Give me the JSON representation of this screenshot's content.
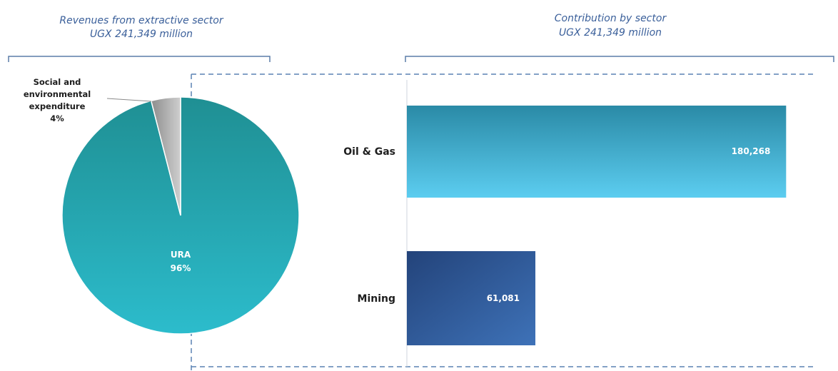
{
  "chart_data": [
    {
      "type": "pie",
      "title": "Revenues from extractive sector",
      "subtitle": "UGX 241,349 million",
      "slices": [
        {
          "label": "URA",
          "value": 96,
          "value_label": "96%",
          "color": "#27a6b2"
        },
        {
          "label": "Social and environmental expenditure",
          "label_lines": [
            "Social and",
            "environmental",
            "expenditure"
          ],
          "value": 4,
          "value_label": "4%",
          "color": "#a9a9a9"
        }
      ]
    },
    {
      "type": "bar",
      "orientation": "horizontal",
      "title": "Contribution by sector",
      "subtitle": "UGX 241,349 million",
      "categories": [
        "Oil & Gas",
        "Mining"
      ],
      "values": [
        180268,
        61081
      ],
      "value_labels": [
        "180,268",
        "61,081"
      ],
      "colors": [
        "#3fb5d8",
        "#2e5b9e"
      ],
      "xlim": [
        0,
        190000
      ]
    }
  ]
}
